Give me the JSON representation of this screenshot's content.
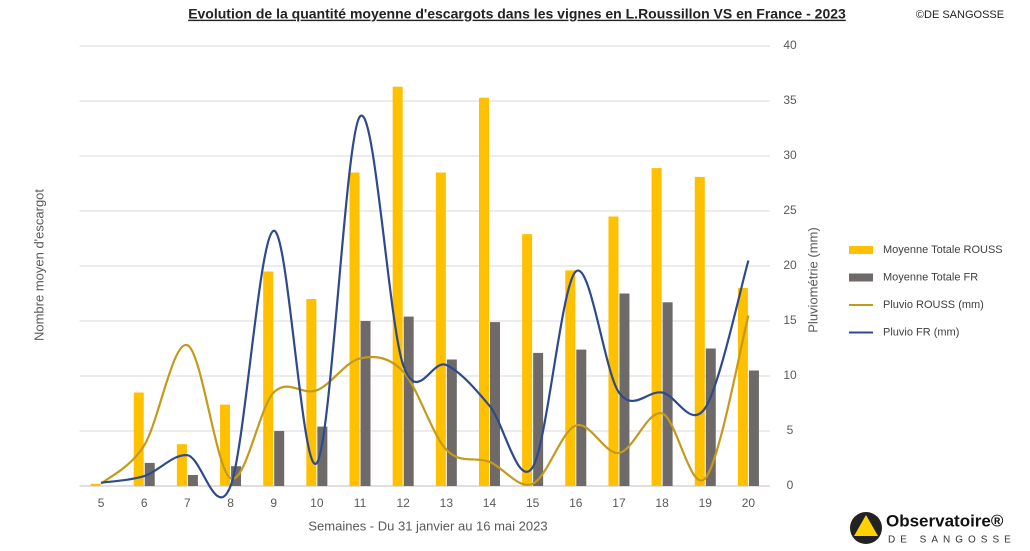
{
  "chart_data": {
    "type": "bar",
    "title": "Evolution de la quantité moyenne d'escargots dans les vignes en L.Roussillon VS en France - 2023",
    "copyright": "©DE SANGOSSE",
    "logo_title": "Observatoire®",
    "logo_subtitle": "DE SANGOSSE",
    "xlabel": "Semaines - Du 31 janvier au 16 mai 2023",
    "ylabel": "Nombre moyen d'escargot",
    "y2label": "Pluviométrie (mm)",
    "categories": [
      "5",
      "6",
      "7",
      "8",
      "9",
      "10",
      "11",
      "12",
      "13",
      "14",
      "15",
      "16",
      "17",
      "18",
      "19",
      "20"
    ],
    "ylim": [
      0,
      40
    ],
    "y2lim": [
      0,
      40
    ],
    "y2ticks": [
      0,
      5,
      10,
      15,
      20,
      25,
      30,
      35,
      40
    ],
    "grid": true,
    "legend": "right",
    "series": [
      {
        "name": "Moyenne Totale ROUSS",
        "type": "bar",
        "color": "#ffc000",
        "values": [
          0.2,
          8.5,
          3.8,
          7.4,
          19.5,
          17,
          28.5,
          36.3,
          28.5,
          35.3,
          22.9,
          19.6,
          24.5,
          28.9,
          28.1,
          18
        ]
      },
      {
        "name": "Moyenne Totale FR",
        "type": "bar",
        "color": "#6e6a6a",
        "values": [
          0,
          2.1,
          1,
          1.8,
          5,
          5.4,
          15,
          15.4,
          11.5,
          14.9,
          12.1,
          12.4,
          17.5,
          16.7,
          12.5,
          10.5
        ]
      },
      {
        "name": "Pluvio ROUSS (mm)",
        "type": "line",
        "axis": "y2",
        "color": "#c49a1c",
        "values": [
          0.2,
          3.7,
          12.8,
          0.7,
          8.5,
          8.7,
          11.6,
          10.4,
          3.3,
          2.2,
          0.2,
          5.5,
          3,
          6.6,
          0.7,
          15.5
        ]
      },
      {
        "name": "Pluvio FR (mm)",
        "type": "line",
        "axis": "y2",
        "color": "#2e4a8c",
        "values": [
          0.3,
          0.9,
          2.8,
          0,
          23.2,
          2.1,
          33.6,
          11,
          11,
          7.3,
          1.7,
          19.5,
          8.5,
          8.5,
          7.1,
          20.5
        ]
      }
    ]
  }
}
